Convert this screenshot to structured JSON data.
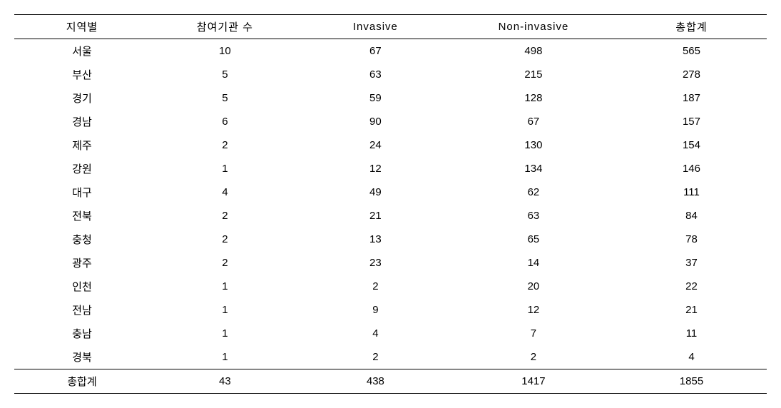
{
  "table": {
    "columns": [
      "지역별",
      "참여기관 수",
      "Invasive",
      "Non-invasive",
      "총합계"
    ],
    "rows": [
      [
        "서울",
        "10",
        "67",
        "498",
        "565"
      ],
      [
        "부산",
        "5",
        "63",
        "215",
        "278"
      ],
      [
        "경기",
        "5",
        "59",
        "128",
        "187"
      ],
      [
        "경남",
        "6",
        "90",
        "67",
        "157"
      ],
      [
        "제주",
        "2",
        "24",
        "130",
        "154"
      ],
      [
        "강원",
        "1",
        "12",
        "134",
        "146"
      ],
      [
        "대구",
        "4",
        "49",
        "62",
        "111"
      ],
      [
        "전북",
        "2",
        "21",
        "63",
        "84"
      ],
      [
        "충청",
        "2",
        "13",
        "65",
        "78"
      ],
      [
        "광주",
        "2",
        "23",
        "14",
        "37"
      ],
      [
        "인천",
        "1",
        "2",
        "20",
        "22"
      ],
      [
        "전남",
        "1",
        "9",
        "12",
        "21"
      ],
      [
        "충남",
        "1",
        "4",
        "7",
        "11"
      ],
      [
        "경북",
        "1",
        "2",
        "2",
        "4"
      ]
    ],
    "footer": [
      "총합계",
      "43",
      "438",
      "1417",
      "1855"
    ]
  }
}
